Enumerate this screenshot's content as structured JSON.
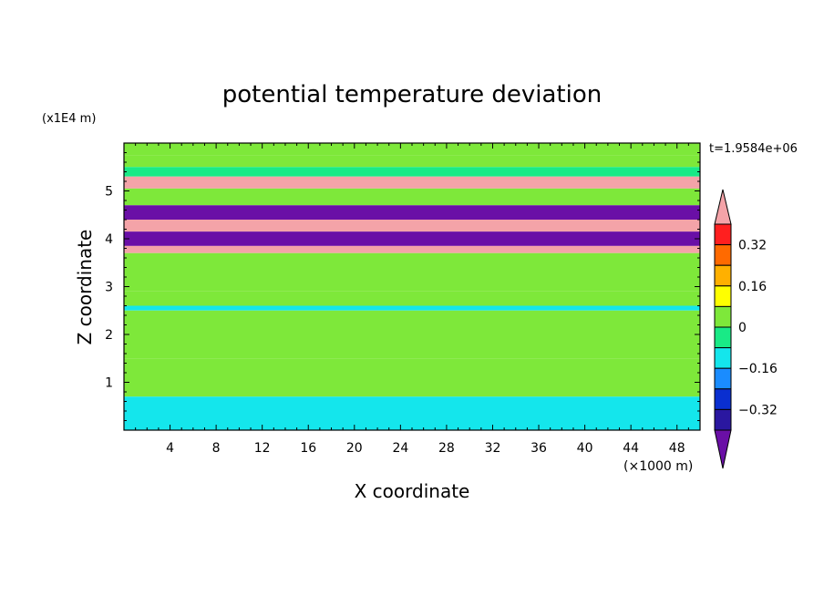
{
  "chart_data": {
    "type": "heatmap",
    "title": "potential temperature deviation",
    "xlabel": "X coordinate",
    "ylabel": "Z coordinate",
    "x_unit": "(×1000 m)",
    "y_unit": "(x1E4 m)",
    "time_label": "t=1.9584e+06",
    "xlim": [
      0,
      50
    ],
    "ylim": [
      0,
      6
    ],
    "x_ticks": [
      4,
      8,
      12,
      16,
      20,
      24,
      28,
      32,
      36,
      40,
      44,
      48
    ],
    "y_ticks": [
      1,
      2,
      3,
      4,
      5
    ],
    "colorbar": {
      "levels": [
        -0.48,
        -0.4,
        -0.32,
        -0.24,
        -0.16,
        -0.08,
        0,
        0.08,
        0.16,
        0.24,
        0.32,
        0.4
      ],
      "tick_labels": [
        "0.32",
        "0.16",
        "0",
        "−0.16",
        "−0.32"
      ],
      "tick_values": [
        0.32,
        0.16,
        0,
        -0.16,
        -0.32
      ],
      "colors": [
        "#6a0fa6",
        "#2a17a0",
        "#0a2fd0",
        "#1a8cff",
        "#14e6ec",
        "#19ea86",
        "#7ee83a",
        "#ffff00",
        "#ffb000",
        "#ff6a00",
        "#ff1f1f",
        "#f4a3a8"
      ]
    },
    "layers": [
      {
        "z": [
          5.75,
          6.0
        ],
        "value": 0.04
      },
      {
        "z": [
          5.5,
          5.75
        ],
        "value": 0.06
      },
      {
        "z": [
          5.3,
          5.5
        ],
        "value": -0.06
      },
      {
        "z": [
          5.05,
          5.3
        ],
        "value": 0.45
      },
      {
        "z": [
          4.7,
          5.05
        ],
        "value": 0.04
      },
      {
        "z": [
          4.4,
          4.7
        ],
        "value": -0.45
      },
      {
        "z": [
          4.15,
          4.4
        ],
        "value": 0.45
      },
      {
        "z": [
          3.85,
          4.15
        ],
        "value": -0.45
      },
      {
        "z": [
          3.7,
          3.85
        ],
        "value": 0.45
      },
      {
        "z": [
          3.4,
          3.7
        ],
        "value": 0.02
      },
      {
        "z": [
          2.9,
          3.4
        ],
        "value": 0.06
      },
      {
        "z": [
          2.6,
          2.9
        ],
        "value": 0.03
      },
      {
        "z": [
          2.5,
          2.6
        ],
        "value": -0.12
      },
      {
        "z": [
          1.5,
          2.5
        ],
        "value": 0.05
      },
      {
        "z": [
          0.7,
          1.5
        ],
        "value": 0.03
      },
      {
        "z": [
          0.0,
          0.7
        ],
        "value": -0.1
      }
    ]
  }
}
